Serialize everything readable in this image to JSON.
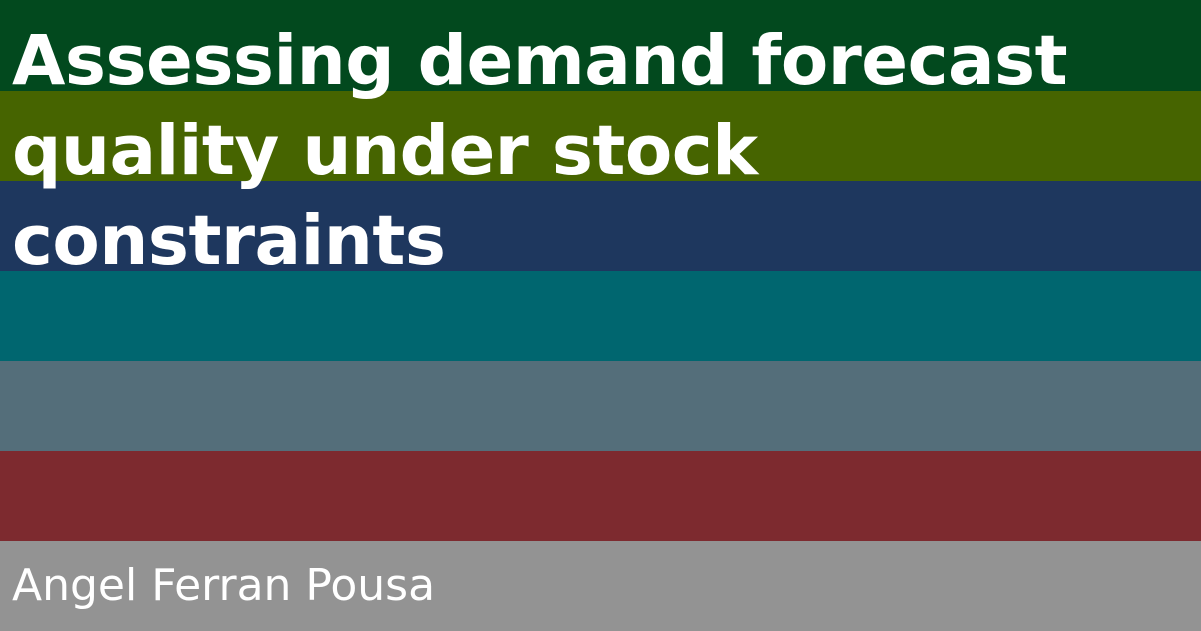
{
  "card": {
    "title_lines": [
      "Assessing demand forecast",
      "quality under stock",
      "constraints"
    ],
    "author": "Angel Ferran Pousa"
  },
  "colors": {
    "stripes": [
      "#02491e",
      "#466400",
      "#1e375e",
      "#00666f",
      "#546e7a",
      "#7d2a2f",
      "#939393"
    ],
    "text": "#ffffff"
  }
}
